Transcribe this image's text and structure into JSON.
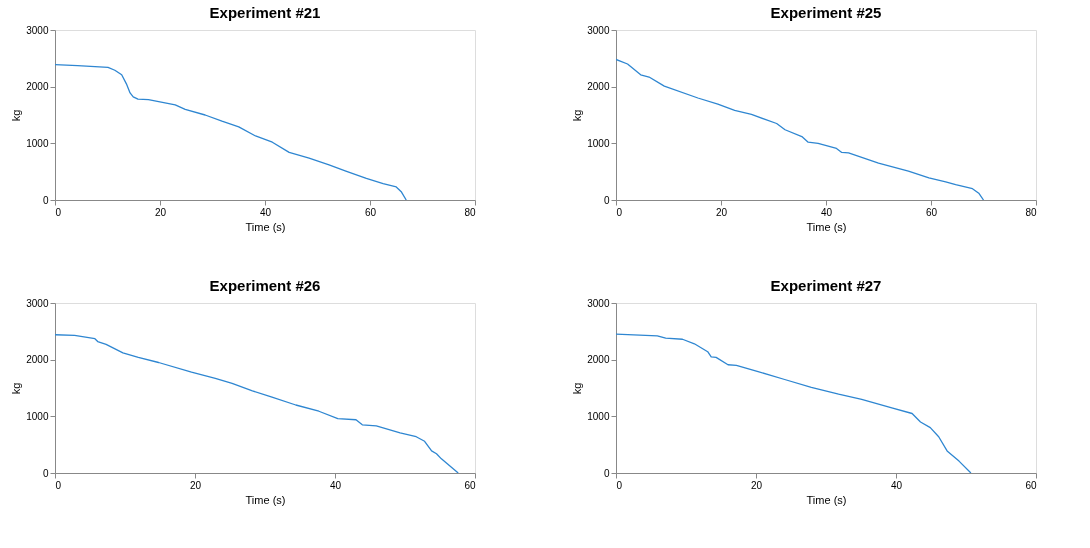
{
  "chart_data": [
    {
      "type": "line",
      "title": "Experiment #21",
      "xlabel": "Time (s)",
      "ylabel": "kg",
      "xlim": [
        0,
        80
      ],
      "ylim": [
        0,
        3000
      ],
      "xticks": [
        0,
        20,
        40,
        60,
        80
      ],
      "yticks": [
        0,
        1000,
        2000,
        3000
      ],
      "grid": false,
      "legend": false,
      "series": [
        {
          "color": "#2e86d1",
          "x": [
            0,
            4.3,
            10.1,
            11.4,
            12.7,
            13.6,
            14.3,
            14.9,
            15.8,
            17.8,
            22.9,
            24.8,
            28.6,
            31.8,
            35.0,
            38.2,
            41.4,
            44.6,
            48.4,
            52.2,
            55.4,
            59.3,
            62.5,
            65.0,
            66.0,
            66.9
          ],
          "values": [
            2390,
            2370,
            2340,
            2290,
            2210,
            2050,
            1890,
            1820,
            1780,
            1770,
            1680,
            1600,
            1500,
            1390,
            1290,
            1130,
            1020,
            840,
            740,
            620,
            510,
            380,
            290,
            230,
            140,
            0
          ]
        }
      ]
    },
    {
      "type": "line",
      "title": "Experiment #25",
      "xlabel": "Time (s)",
      "ylabel": "kg",
      "xlim": [
        0,
        80
      ],
      "ylim": [
        0,
        3000
      ],
      "xticks": [
        0,
        20,
        40,
        60,
        80
      ],
      "yticks": [
        0,
        1000,
        2000,
        3000
      ],
      "grid": false,
      "legend": false,
      "series": [
        {
          "color": "#2e86d1",
          "x": [
            0,
            2.2,
            4.7,
            6.3,
            9.2,
            15.6,
            19.4,
            22.6,
            25.8,
            30.6,
            32.2,
            35.4,
            36.6,
            38.5,
            42.0,
            43.0,
            44.3,
            50.0,
            55.7,
            59.6,
            62.8,
            64.7,
            67.9,
            69.1,
            70.0
          ],
          "values": [
            2480,
            2400,
            2210,
            2170,
            2010,
            1800,
            1690,
            1580,
            1510,
            1350,
            1240,
            1120,
            1020,
            1000,
            910,
            840,
            830,
            650,
            510,
            390,
            320,
            270,
            200,
            120,
            0
          ]
        }
      ]
    },
    {
      "type": "line",
      "title": "Experiment #26",
      "xlabel": "Time (s)",
      "ylabel": "kg",
      "xlim": [
        0,
        60
      ],
      "ylim": [
        0,
        3000
      ],
      "xticks": [
        0,
        20,
        40,
        60
      ],
      "yticks": [
        0,
        1000,
        2000,
        3000
      ],
      "grid": false,
      "legend": false,
      "series": [
        {
          "color": "#2e86d1",
          "x": [
            0,
            2.8,
            5.7,
            6.1,
            7.3,
            9.7,
            11.9,
            14.8,
            19.5,
            22.9,
            25.3,
            28.2,
            31.0,
            34.4,
            37.7,
            40.4,
            43.0,
            43.9,
            45.9,
            49.3,
            51.6,
            52.8,
            53.8,
            54.5,
            55.2,
            57.6
          ],
          "values": [
            2440,
            2430,
            2370,
            2320,
            2270,
            2120,
            2040,
            1950,
            1780,
            1670,
            1580,
            1450,
            1340,
            1200,
            1090,
            960,
            940,
            850,
            830,
            710,
            640,
            560,
            390,
            340,
            250,
            0
          ]
        }
      ]
    },
    {
      "type": "line",
      "title": "Experiment #27",
      "xlabel": "Time (s)",
      "ylabel": "kg",
      "xlim": [
        0,
        60
      ],
      "ylim": [
        0,
        3000
      ],
      "xticks": [
        0,
        20,
        40,
        60
      ],
      "yticks": [
        0,
        1000,
        2000,
        3000
      ],
      "grid": false,
      "legend": false,
      "series": [
        {
          "color": "#2e86d1",
          "x": [
            0,
            5.9,
            7.1,
            9.5,
            11.2,
            13.1,
            13.6,
            14.3,
            16.0,
            17.2,
            20.3,
            24.1,
            27.9,
            31.8,
            35.1,
            39.4,
            42.3,
            43.5,
            44.9,
            46.1,
            47.3,
            49.0,
            50.7
          ],
          "values": [
            2450,
            2420,
            2380,
            2360,
            2280,
            2140,
            2050,
            2040,
            1910,
            1900,
            1790,
            1650,
            1510,
            1390,
            1300,
            1150,
            1050,
            900,
            800,
            640,
            390,
            210,
            0
          ]
        }
      ]
    }
  ]
}
